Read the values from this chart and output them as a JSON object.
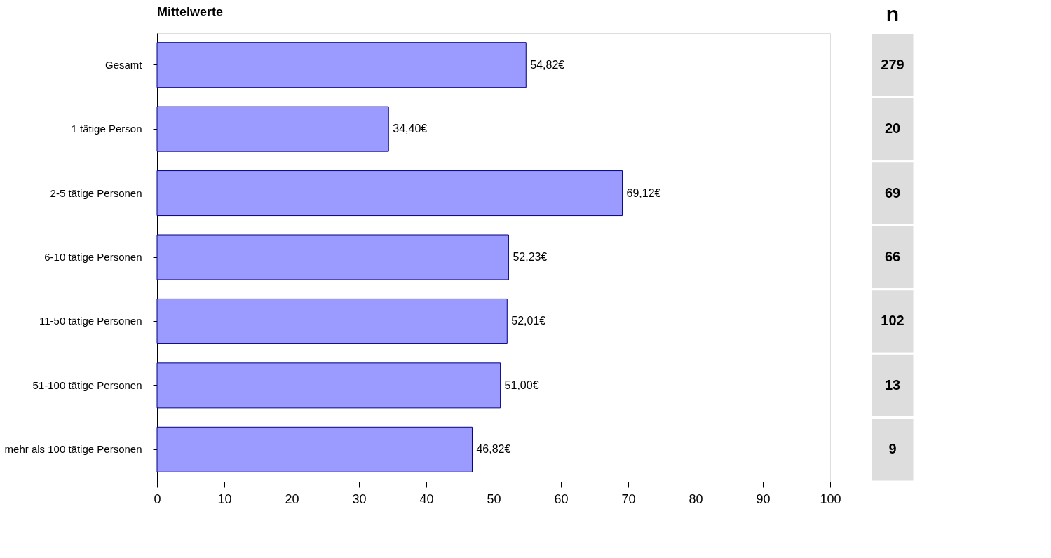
{
  "chart_data": {
    "type": "bar",
    "orientation": "horizontal",
    "title": "Mittelwerte",
    "categories": [
      "Gesamt",
      "1 tätige Person",
      "2-5 tätige Personen",
      "6-10 tätige Personen",
      "11-50 tätige Personen",
      "51-100 tätige Personen",
      "mehr als 100 tätige Personen"
    ],
    "values": [
      54.82,
      34.4,
      69.12,
      52.23,
      52.01,
      51.0,
      46.82
    ],
    "value_labels": [
      "54,82€",
      "34,40€",
      "69,12€",
      "52,23€",
      "52,01€",
      "51,00€",
      "46,82€"
    ],
    "color": "#9a9aff",
    "xlim": [
      0,
      100
    ],
    "xticks": [
      0,
      10,
      20,
      30,
      40,
      50,
      60,
      70,
      80,
      90,
      100
    ],
    "grid": false,
    "annotations": [
      "n",
      "279",
      "20",
      "69",
      "66",
      "102",
      "13",
      "9"
    ]
  }
}
